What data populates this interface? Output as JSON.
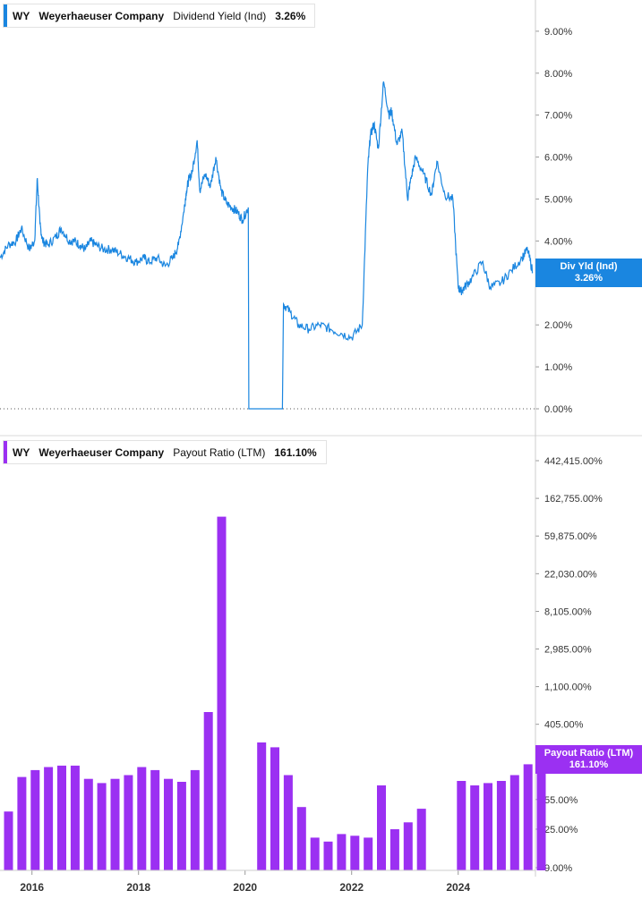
{
  "panels": {
    "top": {
      "ticker": "WY",
      "company": "Weyerhaeuser Company",
      "metric": "Dividend Yield (Ind)",
      "value": "3.26%",
      "color": "#1a86e0",
      "flag_label": "Div Yld (Ind)",
      "flag_value": "3.26%"
    },
    "bottom": {
      "ticker": "WY",
      "company": "Weyerhaeuser Company",
      "metric": "Payout Ratio (LTM)",
      "value": "161.10%",
      "color": "#9b30f2",
      "flag_label": "Payout Ratio (LTM)",
      "flag_value": "161.10%"
    }
  },
  "chart_data": [
    {
      "type": "line",
      "title": "",
      "series": [
        {
          "name": "Dividend Yield (Ind)",
          "x": [
            2015.4,
            2015.55,
            2015.7,
            2015.8,
            2015.95,
            2016.05,
            2016.1,
            2016.15,
            2016.2,
            2016.3,
            2016.45,
            2016.55,
            2016.7,
            2016.8,
            2016.9,
            2017.0,
            2017.1,
            2017.2,
            2017.35,
            2017.5,
            2017.65,
            2017.8,
            2017.95,
            2018.1,
            2018.2,
            2018.35,
            2018.5,
            2018.65,
            2018.75,
            2018.85,
            2018.9,
            2018.95,
            2019.0,
            2019.1,
            2019.15,
            2019.25,
            2019.35,
            2019.45,
            2019.55,
            2019.65,
            2019.75,
            2019.85,
            2019.95,
            2020.06,
            2020.07,
            2020.7,
            2020.72,
            2020.85,
            2021.0,
            2021.2,
            2021.4,
            2021.6,
            2021.8,
            2022.0,
            2022.2,
            2022.3,
            2022.35,
            2022.42,
            2022.5,
            2022.6,
            2022.7,
            2022.75,
            2022.85,
            2022.95,
            2023.05,
            2023.1,
            2023.2,
            2023.35,
            2023.5,
            2023.6,
            2023.75,
            2023.9,
            2024.0,
            2024.05,
            2024.12,
            2024.25,
            2024.45,
            2024.6,
            2024.8,
            2025.0,
            2025.2,
            2025.3,
            2025.4
          ],
          "y": [
            3.6,
            3.9,
            4.0,
            4.3,
            3.8,
            4.0,
            5.5,
            4.4,
            4.0,
            3.9,
            4.1,
            4.3,
            4.0,
            4.0,
            3.9,
            3.8,
            4.0,
            3.9,
            3.8,
            3.8,
            3.7,
            3.6,
            3.5,
            3.6,
            3.5,
            3.6,
            3.4,
            3.6,
            3.9,
            4.7,
            5.2,
            5.5,
            5.6,
            6.4,
            5.2,
            5.6,
            5.3,
            6.0,
            5.2,
            4.9,
            4.8,
            4.7,
            4.5,
            4.8,
            0.0,
            0.0,
            2.5,
            2.3,
            2.0,
            1.9,
            2.0,
            1.9,
            1.8,
            1.7,
            2.0,
            5.7,
            6.5,
            6.8,
            6.2,
            7.8,
            7.0,
            7.1,
            6.3,
            6.6,
            5.0,
            5.4,
            6.0,
            5.6,
            5.1,
            5.9,
            5.1,
            5.0,
            2.9,
            2.8,
            2.9,
            3.1,
            3.5,
            2.9,
            3.0,
            3.3,
            3.6,
            3.8,
            3.26
          ]
        }
      ],
      "xlim": [
        2015.4,
        2025.45
      ],
      "ylim": [
        0,
        9.5
      ],
      "yticks": [
        0,
        1,
        2,
        3,
        4,
        5,
        6,
        7,
        8,
        9
      ],
      "ytick_labels": [
        "0.00%",
        "1.00%",
        "2.00%",
        "3.00%",
        "4.00%",
        "5.00%",
        "6.00%",
        "7.00%",
        "8.00%",
        "9.00%"
      ],
      "xticks": [
        2016,
        2018,
        2020,
        2022,
        2024
      ],
      "xtick_labels": [
        "2016",
        "2018",
        "2020",
        "2022",
        "2024"
      ],
      "grid": false,
      "yaxis_position": "right"
    },
    {
      "type": "bar",
      "title": "",
      "scale": "log",
      "series": [
        {
          "name": "Payout Ratio (LTM)",
          "x": [
            2015.56,
            2015.81,
            2016.06,
            2016.31,
            2016.56,
            2016.81,
            2017.06,
            2017.31,
            2017.56,
            2017.81,
            2018.06,
            2018.31,
            2018.56,
            2018.81,
            2019.06,
            2019.31,
            2019.56,
            2020.31,
            2020.56,
            2020.81,
            2021.06,
            2021.31,
            2021.56,
            2021.81,
            2022.06,
            2022.31,
            2022.56,
            2022.81,
            2023.06,
            2023.31,
            2024.06,
            2024.31,
            2024.56,
            2024.81,
            2025.06,
            2025.31,
            2025.56
          ],
          "values": [
            40,
            100,
            120,
            130,
            135,
            135,
            95,
            85,
            95,
            105,
            130,
            120,
            95,
            88,
            120,
            560,
            100000,
            250,
            220,
            105,
            45,
            20,
            18,
            22,
            21,
            20,
            80,
            25,
            30,
            43,
            90,
            80,
            85,
            90,
            105,
            140,
            160
          ]
        }
      ],
      "xlim": [
        2015.4,
        2025.45
      ],
      "yticks": [
        9,
        25,
        55,
        150,
        405,
        1100,
        2985,
        8105,
        22030,
        59875,
        162755,
        442415
      ],
      "ytick_labels": [
        "9.00%",
        "25.00%",
        "55.00%",
        "150.00%",
        "405.00%",
        "1,100.00%",
        "2,985.00%",
        "8,105.00%",
        "22,030.00%",
        "59,875.00%",
        "162,755.00%",
        "442,415.00%"
      ],
      "xticks": [
        2016,
        2018,
        2020,
        2022,
        2024
      ],
      "xtick_labels": [
        "2016",
        "2018",
        "2020",
        "2022",
        "2024"
      ],
      "grid": false,
      "yaxis_position": "right"
    }
  ]
}
